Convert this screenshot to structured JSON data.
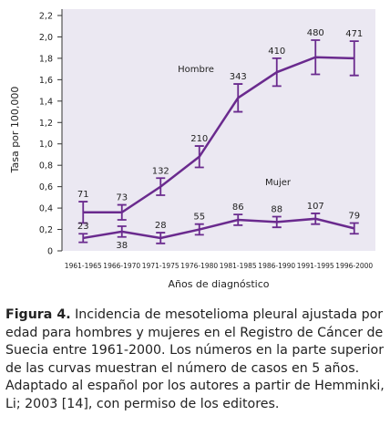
{
  "chart_data": {
    "type": "line",
    "y_label": "Tasa por 100,000",
    "x_label": "Años de diagnóstico",
    "categories": [
      "1961-1965",
      "1966-1970",
      "1971-1975",
      "1976-1980",
      "1981-1985",
      "1986-1990",
      "1991-1995",
      "1996-2000"
    ],
    "ylim": [
      0,
      2.2
    ],
    "yticks": [
      0,
      {
        "value": 0.2,
        "label": "0,2"
      },
      {
        "value": 0.4,
        "label": "0,4"
      },
      {
        "value": 0.6,
        "label": "0,6"
      },
      {
        "value": 0.8,
        "label": "0,8"
      },
      {
        "value": 1.0,
        "label": "1,0"
      },
      {
        "value": 1.2,
        "label": "1,2"
      },
      {
        "value": 1.4,
        "label": "1,4"
      },
      {
        "value": 1.6,
        "label": "1,6"
      },
      {
        "value": 1.8,
        "label": "1,8"
      },
      {
        "value": 2.0,
        "label": "2,0"
      },
      {
        "value": 2.2,
        "label": "2,2"
      }
    ],
    "color": "#6a2a8e",
    "series": [
      {
        "name": "Hombre",
        "values": [
          0.36,
          0.36,
          0.6,
          0.88,
          1.43,
          1.67,
          1.81,
          1.8
        ],
        "errors": [
          0.1,
          0.07,
          0.08,
          0.1,
          0.13,
          0.13,
          0.16,
          0.16
        ],
        "case_counts": [
          71,
          73,
          132,
          210,
          343,
          410,
          480,
          471
        ]
      },
      {
        "name": "Mujer",
        "values": [
          0.12,
          0.18,
          0.12,
          0.2,
          0.29,
          0.27,
          0.3,
          0.21
        ],
        "errors": [
          0.04,
          0.05,
          0.05,
          0.05,
          0.05,
          0.05,
          0.05,
          0.05
        ],
        "case_counts": [
          23,
          38,
          28,
          55,
          86,
          88,
          107,
          79
        ]
      }
    ]
  },
  "caption": {
    "label": "Figura 4.",
    "text": "Incidencia de mesotelioma pleural ajustada por edad para hombres y mujeres en el Registro de Cáncer de Suecia entre 1961-2000. Los números en la parte superior de las curvas muestran el número de casos en 5 años. Adaptado al español por los autores a partir de Hemminki, Li; 2003 [14], con permiso de los editores."
  }
}
